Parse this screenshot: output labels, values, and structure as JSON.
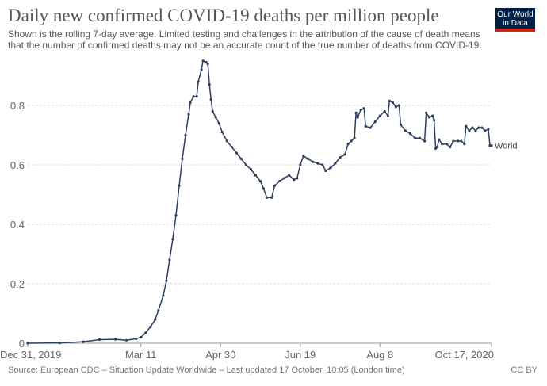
{
  "title": "Daily new confirmed COVID-19 deaths per million people",
  "subtitle": "Shown is the rolling 7-day average. Limited testing and challenges in the attribution of the cause of death means that the number of confirmed deaths may not be an accurate count of the true number of deaths from COVID-19.",
  "logo": {
    "line1": "Our World",
    "line2": "in Data"
  },
  "source": "Source: European CDC – Situation Update Worldwide – Last updated 17 October, 10:05 (London time)",
  "license": "CC BY",
  "chart_data": {
    "type": "line",
    "xlim": [
      "2019-12-31",
      "2020-10-17"
    ],
    "ylim": [
      0,
      0.95
    ],
    "grid": true,
    "color": "#2d3e5e",
    "x_ticks": [
      {
        "date": "2019-12-31",
        "label": "Dec 31, 2019"
      },
      {
        "date": "2020-03-11",
        "label": "Mar 11"
      },
      {
        "date": "2020-04-30",
        "label": "Apr 30"
      },
      {
        "date": "2020-06-19",
        "label": "Jun 19"
      },
      {
        "date": "2020-08-08",
        "label": "Aug 8"
      },
      {
        "date": "2020-10-17",
        "label": "Oct 17, 2020"
      }
    ],
    "y_ticks": [
      {
        "value": 0,
        "label": "0"
      },
      {
        "value": 0.2,
        "label": "0.2"
      },
      {
        "value": 0.4,
        "label": "0.4"
      },
      {
        "value": 0.6,
        "label": "0.6"
      },
      {
        "value": 0.8,
        "label": "0.8"
      }
    ],
    "series": [
      {
        "name": "World",
        "points": [
          [
            "2019-12-31",
            0
          ],
          [
            "2020-01-20",
            0.001
          ],
          [
            "2020-02-04",
            0.005
          ],
          [
            "2020-02-14",
            0.012
          ],
          [
            "2020-02-24",
            0.013
          ],
          [
            "2020-03-02",
            0.01
          ],
          [
            "2020-03-08",
            0.015
          ],
          [
            "2020-03-11",
            0.02
          ],
          [
            "2020-03-14",
            0.035
          ],
          [
            "2020-03-17",
            0.055
          ],
          [
            "2020-03-20",
            0.08
          ],
          [
            "2020-03-22",
            0.11
          ],
          [
            "2020-03-25",
            0.16
          ],
          [
            "2020-03-27",
            0.21
          ],
          [
            "2020-03-29",
            0.28
          ],
          [
            "2020-03-31",
            0.35
          ],
          [
            "2020-04-02",
            0.43
          ],
          [
            "2020-04-04",
            0.53
          ],
          [
            "2020-04-06",
            0.62
          ],
          [
            "2020-04-08",
            0.7
          ],
          [
            "2020-04-10",
            0.77
          ],
          [
            "2020-04-11",
            0.81
          ],
          [
            "2020-04-13",
            0.83
          ],
          [
            "2020-04-15",
            0.83
          ],
          [
            "2020-04-16",
            0.88
          ],
          [
            "2020-04-18",
            0.92
          ],
          [
            "2020-04-19",
            0.95
          ],
          [
            "2020-04-21",
            0.945
          ],
          [
            "2020-04-22",
            0.94
          ],
          [
            "2020-04-23",
            0.87
          ],
          [
            "2020-04-24",
            0.82
          ],
          [
            "2020-04-25",
            0.78
          ],
          [
            "2020-04-27",
            0.76
          ],
          [
            "2020-04-29",
            0.74
          ],
          [
            "2020-05-01",
            0.71
          ],
          [
            "2020-05-04",
            0.68
          ],
          [
            "2020-05-07",
            0.66
          ],
          [
            "2020-05-10",
            0.64
          ],
          [
            "2020-05-13",
            0.62
          ],
          [
            "2020-05-16",
            0.6
          ],
          [
            "2020-05-19",
            0.585
          ],
          [
            "2020-05-22",
            0.565
          ],
          [
            "2020-05-25",
            0.545
          ],
          [
            "2020-05-27",
            0.52
          ],
          [
            "2020-05-29",
            0.49
          ],
          [
            "2020-06-01",
            0.49
          ],
          [
            "2020-06-03",
            0.53
          ],
          [
            "2020-06-06",
            0.545
          ],
          [
            "2020-06-09",
            0.555
          ],
          [
            "2020-06-12",
            0.565
          ],
          [
            "2020-06-15",
            0.55
          ],
          [
            "2020-06-17",
            0.555
          ],
          [
            "2020-06-19",
            0.6
          ],
          [
            "2020-06-21",
            0.63
          ],
          [
            "2020-06-24",
            0.62
          ],
          [
            "2020-06-27",
            0.61
          ],
          [
            "2020-06-30",
            0.605
          ],
          [
            "2020-07-03",
            0.6
          ],
          [
            "2020-07-05",
            0.58
          ],
          [
            "2020-07-08",
            0.59
          ],
          [
            "2020-07-11",
            0.605
          ],
          [
            "2020-07-14",
            0.625
          ],
          [
            "2020-07-17",
            0.635
          ],
          [
            "2020-07-19",
            0.67
          ],
          [
            "2020-07-21",
            0.68
          ],
          [
            "2020-07-23",
            0.69
          ],
          [
            "2020-07-24",
            0.775
          ],
          [
            "2020-07-25",
            0.76
          ],
          [
            "2020-07-27",
            0.785
          ],
          [
            "2020-07-29",
            0.79
          ],
          [
            "2020-07-30",
            0.73
          ],
          [
            "2020-08-02",
            0.725
          ],
          [
            "2020-08-05",
            0.745
          ],
          [
            "2020-08-08",
            0.765
          ],
          [
            "2020-08-11",
            0.78
          ],
          [
            "2020-08-13",
            0.765
          ],
          [
            "2020-08-14",
            0.815
          ],
          [
            "2020-08-16",
            0.81
          ],
          [
            "2020-08-18",
            0.795
          ],
          [
            "2020-08-20",
            0.8
          ],
          [
            "2020-08-21",
            0.735
          ],
          [
            "2020-08-24",
            0.715
          ],
          [
            "2020-08-27",
            0.705
          ],
          [
            "2020-08-30",
            0.69
          ],
          [
            "2020-09-02",
            0.69
          ],
          [
            "2020-09-05",
            0.68
          ],
          [
            "2020-09-06",
            0.775
          ],
          [
            "2020-09-08",
            0.76
          ],
          [
            "2020-09-10",
            0.765
          ],
          [
            "2020-09-11",
            0.75
          ],
          [
            "2020-09-12",
            0.655
          ],
          [
            "2020-09-13",
            0.66
          ],
          [
            "2020-09-14",
            0.685
          ],
          [
            "2020-09-16",
            0.67
          ],
          [
            "2020-09-19",
            0.67
          ],
          [
            "2020-09-21",
            0.66
          ],
          [
            "2020-09-23",
            0.68
          ],
          [
            "2020-09-26",
            0.68
          ],
          [
            "2020-09-28",
            0.68
          ],
          [
            "2020-09-30",
            0.67
          ],
          [
            "2020-10-01",
            0.73
          ],
          [
            "2020-10-03",
            0.715
          ],
          [
            "2020-10-05",
            0.725
          ],
          [
            "2020-10-07",
            0.715
          ],
          [
            "2020-10-09",
            0.725
          ],
          [
            "2020-10-11",
            0.725
          ],
          [
            "2020-10-13",
            0.715
          ],
          [
            "2020-10-15",
            0.72
          ],
          [
            "2020-10-16",
            0.665
          ],
          [
            "2020-10-17",
            0.665
          ]
        ]
      }
    ]
  }
}
